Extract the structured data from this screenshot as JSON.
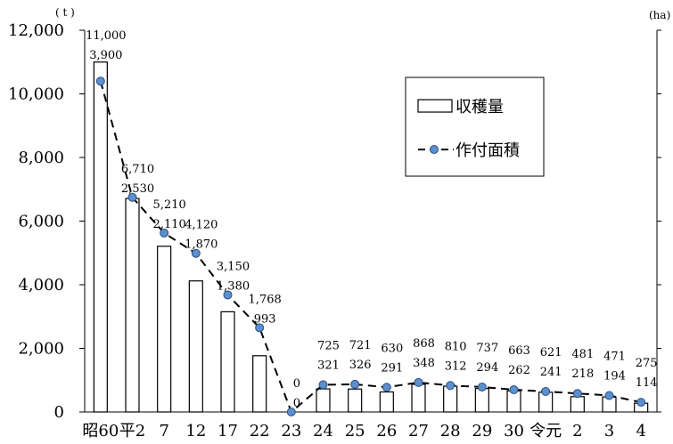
{
  "chart_data": {
    "type": "bar",
    "left_unit": "( t )",
    "right_unit": "(ha)",
    "categories": [
      "昭60",
      "平2",
      "7",
      "12",
      "17",
      "22",
      "23",
      "24",
      "25",
      "26",
      "27",
      "28",
      "29",
      "30",
      "令元",
      "2",
      "3",
      "4"
    ],
    "series": [
      {
        "name": "収穫量",
        "kind": "bar",
        "axis": "left",
        "values": [
          11000,
          6710,
          5210,
          4120,
          3150,
          1768,
          0,
          725,
          721,
          630,
          868,
          810,
          737,
          663,
          621,
          481,
          471,
          275
        ],
        "labels": [
          "11,000",
          "6,710",
          "5,210",
          "4,120",
          "3,150",
          "1,768",
          "0",
          "725",
          "721",
          "630",
          "868",
          "810",
          "737",
          "663",
          "621",
          "481",
          "471",
          "275"
        ]
      },
      {
        "name": "作付面積",
        "kind": "line",
        "axis": "right",
        "values": [
          3900,
          2530,
          2110,
          1870,
          1380,
          993,
          0,
          321,
          326,
          291,
          348,
          312,
          294,
          262,
          241,
          218,
          194,
          114
        ],
        "labels": [
          "3,900",
          "2,530",
          "2,110",
          "1,870",
          "1,380",
          "993",
          "0",
          "321",
          "326",
          "291",
          "348",
          "312",
          "294",
          "262",
          "241",
          "218",
          "194",
          "114"
        ]
      }
    ],
    "ylim": [
      0,
      12000
    ],
    "yticks": [
      0,
      2000,
      4000,
      6000,
      8000,
      10000,
      12000
    ],
    "ytick_labels": [
      "0",
      "2,000",
      "4,000",
      "6,000",
      "8,000",
      "10,000",
      "12,000"
    ],
    "y2lim": [
      0,
      4500
    ],
    "legend_position": "upper-right",
    "grid": false,
    "line_color": "#5b8fcf"
  }
}
